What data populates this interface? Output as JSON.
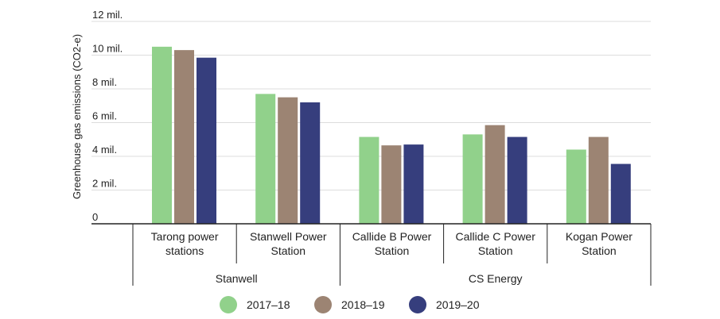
{
  "chart_data": {
    "type": "bar",
    "ylabel": "Greenhouse gas emissions (CO2-e)",
    "ylim": [
      0,
      12000000
    ],
    "yticks": [
      {
        "value": 0,
        "label": "0"
      },
      {
        "value": 2000000,
        "label": "2 mil."
      },
      {
        "value": 4000000,
        "label": "4 mil."
      },
      {
        "value": 6000000,
        "label": "6 mil."
      },
      {
        "value": 8000000,
        "label": "8 mil."
      },
      {
        "value": 10000000,
        "label": "10 mil."
      },
      {
        "value": 12000000,
        "label": "12 mil."
      }
    ],
    "grid": true,
    "legend_position": "bottom",
    "categories": [
      {
        "lines": [
          "Tarong power",
          "stations"
        ]
      },
      {
        "lines": [
          "Stanwell Power",
          "Station"
        ]
      },
      {
        "lines": [
          "Callide B Power",
          "Station"
        ]
      },
      {
        "lines": [
          "Callide C Power",
          "Station"
        ]
      },
      {
        "lines": [
          "Kogan Power",
          "Station"
        ]
      }
    ],
    "groups": [
      {
        "label": "Stanwell",
        "categories": [
          0,
          1
        ]
      },
      {
        "label": "CS Energy",
        "categories": [
          2,
          3,
          4
        ]
      }
    ],
    "series": [
      {
        "name": "2017–18",
        "color": "#91d18b",
        "values": [
          10500000,
          7700000,
          5150000,
          5300000,
          4400000
        ]
      },
      {
        "name": "2018–19",
        "color": "#9c8473",
        "values": [
          10300000,
          7500000,
          4650000,
          5850000,
          5150000
        ]
      },
      {
        "name": "2019–20",
        "color": "#363e7d",
        "values": [
          9850000,
          7200000,
          4700000,
          5150000,
          3550000
        ]
      }
    ]
  }
}
